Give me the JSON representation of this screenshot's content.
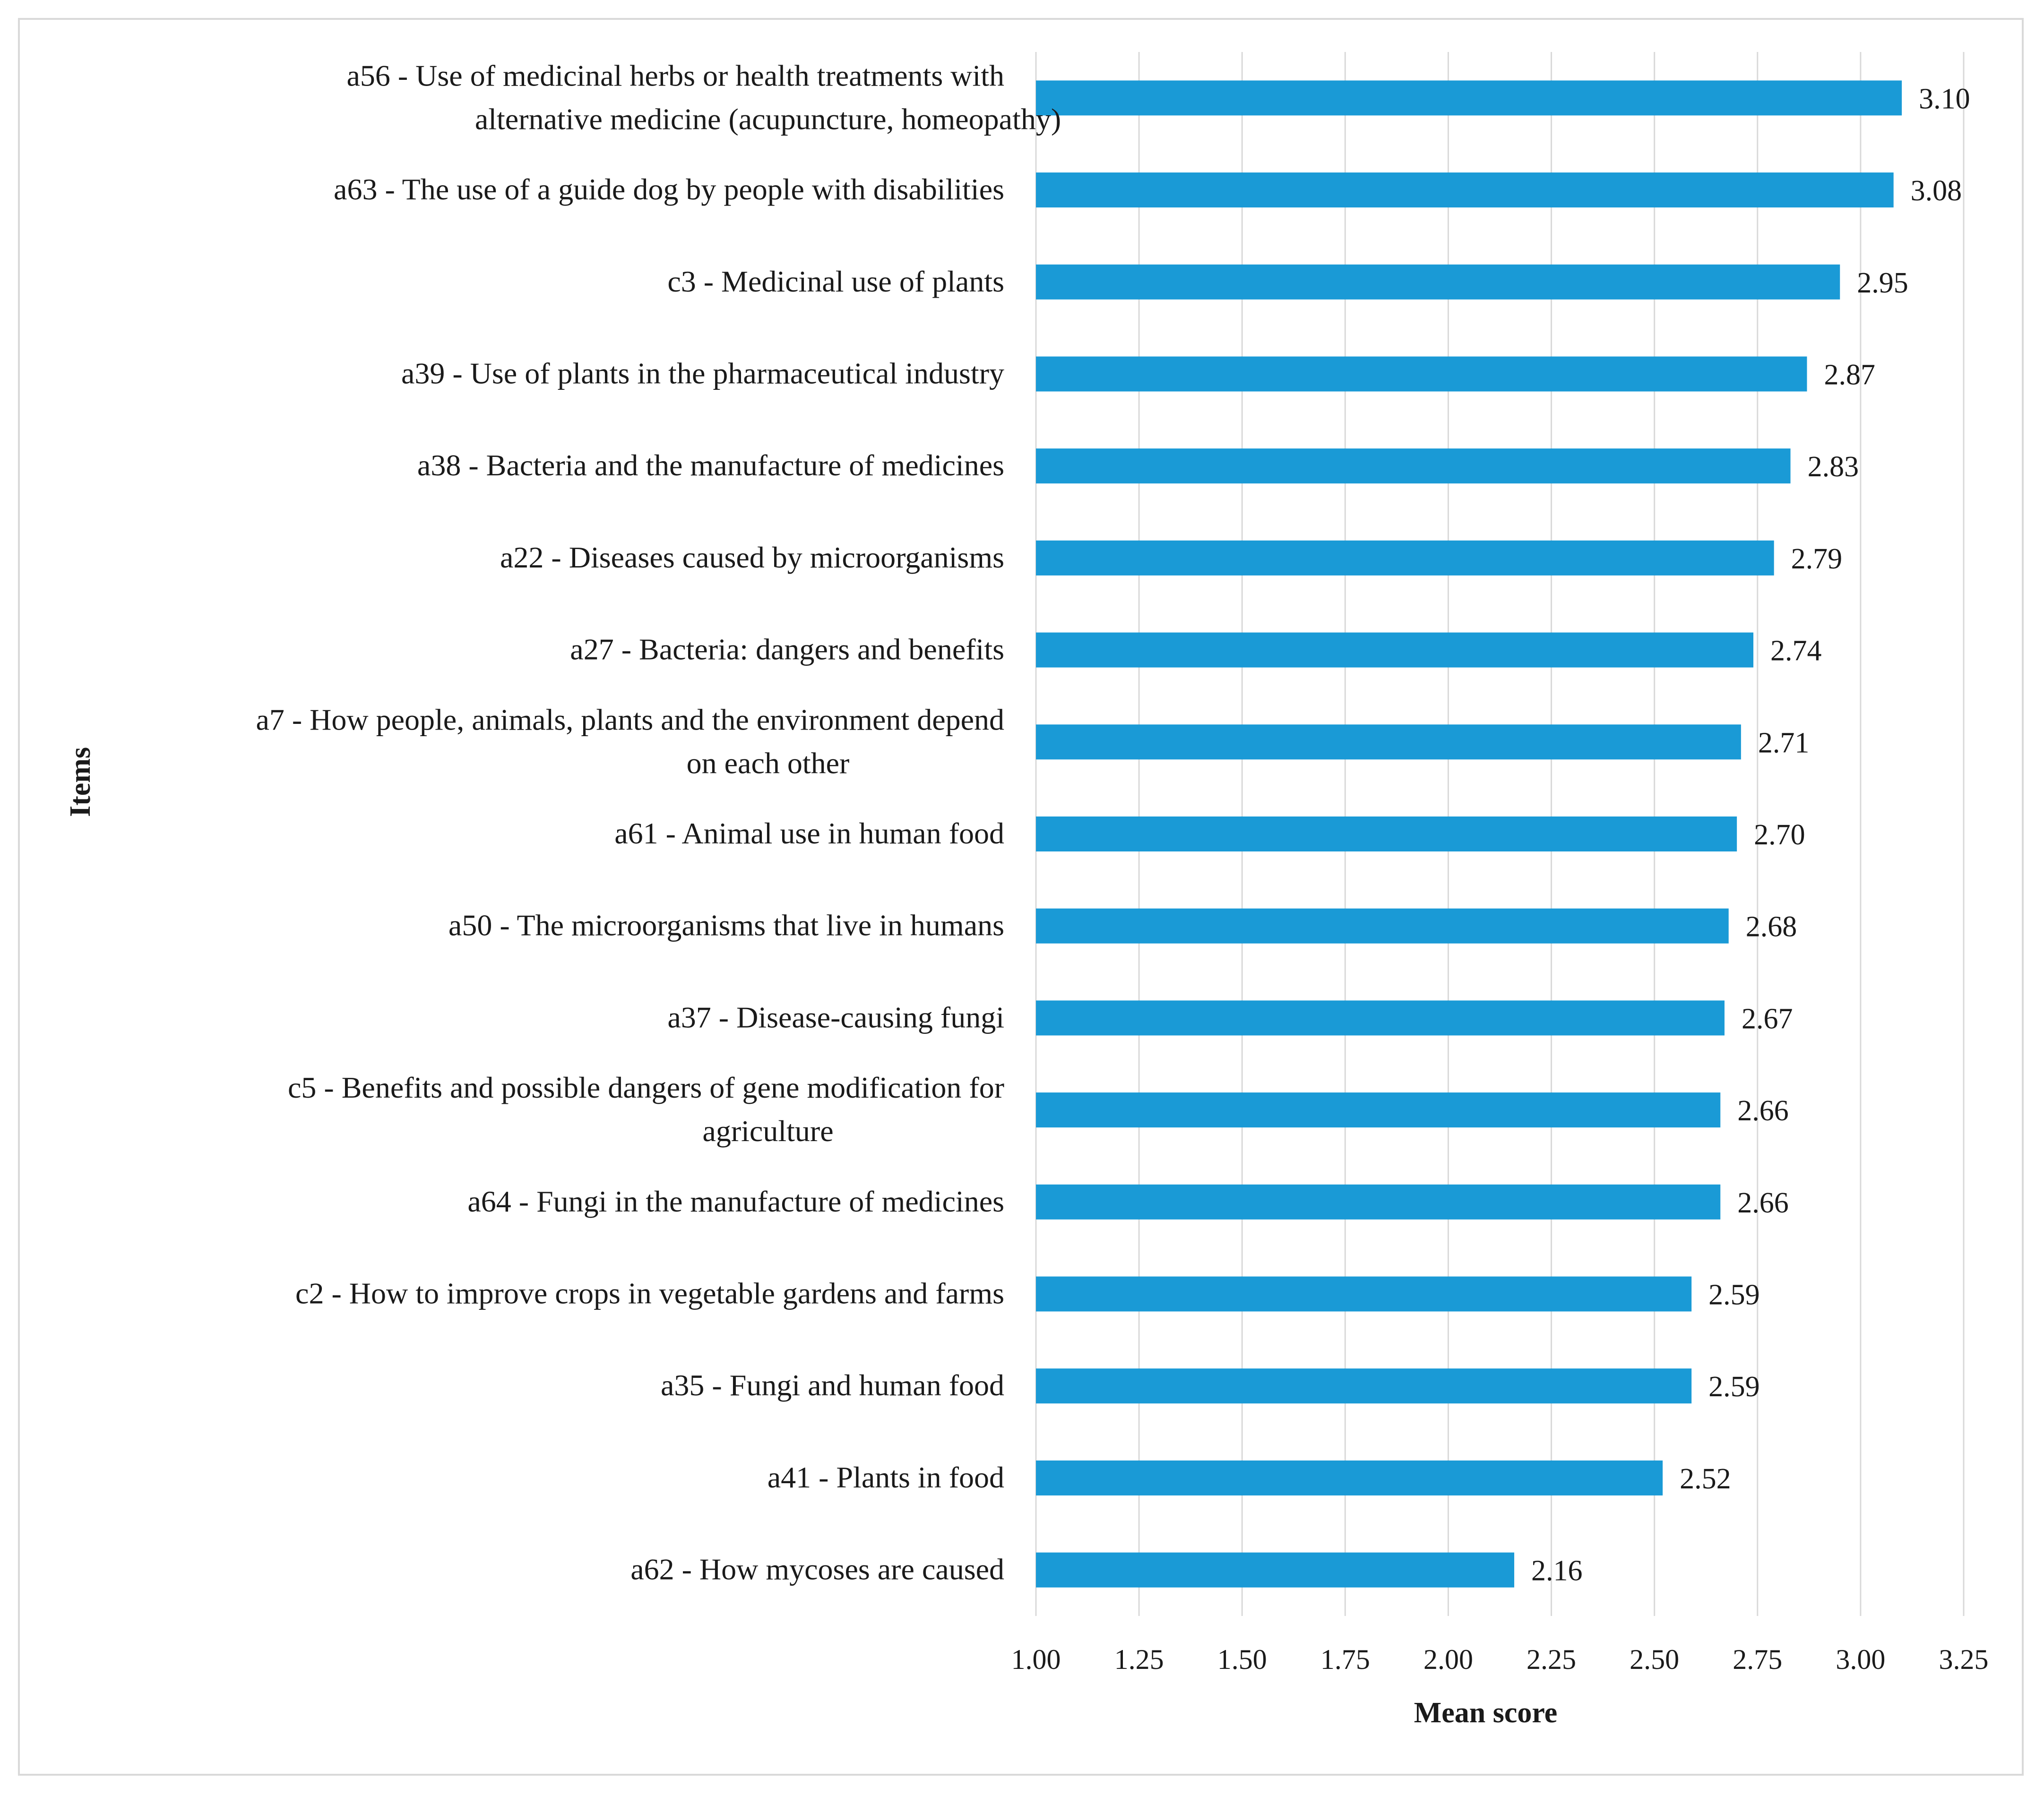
{
  "chart_data": {
    "type": "bar",
    "orientation": "horizontal",
    "title": "",
    "xlabel": "Mean score",
    "ylabel": "Items",
    "xlim": [
      1.0,
      3.25
    ],
    "xticks": [
      "1.00",
      "1.25",
      "1.50",
      "1.75",
      "2.00",
      "2.25",
      "2.50",
      "2.75",
      "3.00",
      "3.25"
    ],
    "grid": "vertical",
    "bar_color": "#1a9ad6",
    "categories": [
      [
        "a56 - Use of medicinal herbs or health treatments with",
        "alternative medicine (acupuncture, homeopathy)"
      ],
      [
        "a63 - The use of a guide dog by people with disabilities"
      ],
      [
        "c3 - Medicinal use of plants"
      ],
      [
        "a39 - Use of plants in the pharmaceutical industry"
      ],
      [
        "a38 - Bacteria and the manufacture of medicines"
      ],
      [
        "a22 - Diseases caused by microorganisms"
      ],
      [
        "a27 - Bacteria: dangers and benefits"
      ],
      [
        "a7 - How people, animals, plants and the environment depend",
        "on each other"
      ],
      [
        "a61 - Animal use in human food"
      ],
      [
        "a50 - The microorganisms that live in humans"
      ],
      [
        "a37 - Disease-causing fungi"
      ],
      [
        "c5 - Benefits and possible dangers of gene modification for",
        "agriculture"
      ],
      [
        "a64 - Fungi in the manufacture of medicines"
      ],
      [
        "c2 - How to improve crops in vegetable gardens and farms"
      ],
      [
        "a35 - Fungi and human food"
      ],
      [
        "a41 - Plants in food"
      ],
      [
        "a62 - How mycoses are caused"
      ]
    ],
    "values": [
      3.1,
      3.08,
      2.95,
      2.87,
      2.83,
      2.79,
      2.74,
      2.71,
      2.7,
      2.68,
      2.67,
      2.66,
      2.66,
      2.59,
      2.59,
      2.52,
      2.16
    ],
    "value_labels": [
      "3.10",
      "3.08",
      "2.95",
      "2.87",
      "2.83",
      "2.79",
      "2.74",
      "2.71",
      "2.70",
      "2.68",
      "2.67",
      "2.66",
      "2.66",
      "2.59",
      "2.59",
      "2.52",
      "2.16"
    ]
  }
}
